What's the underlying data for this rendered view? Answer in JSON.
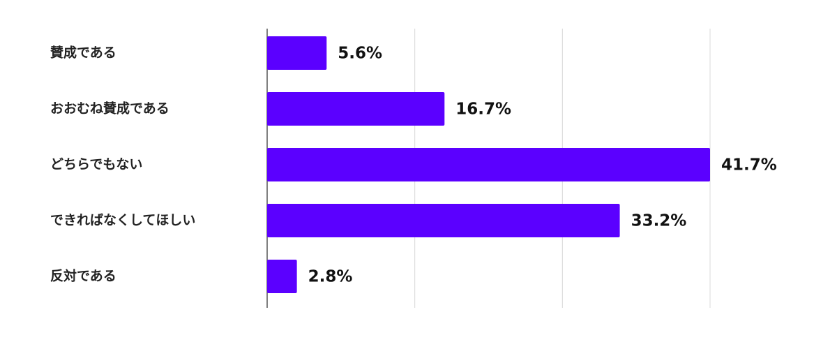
{
  "chart_data": {
    "type": "hbar",
    "categories": [
      "賛成である",
      "おおむね賛成である",
      "どちらでもない",
      "できればなくしてほしい",
      "反対である"
    ],
    "values": [
      5.6,
      16.7,
      41.7,
      33.2,
      2.8
    ],
    "value_labels": [
      "5.6%",
      "16.7%",
      "41.7%",
      "33.2%",
      "2.8%"
    ],
    "color": "#5b00ff",
    "xlim": [
      0,
      41.7
    ],
    "xticks": [
      0,
      13.9,
      27.8,
      41.7
    ],
    "grid": true
  }
}
